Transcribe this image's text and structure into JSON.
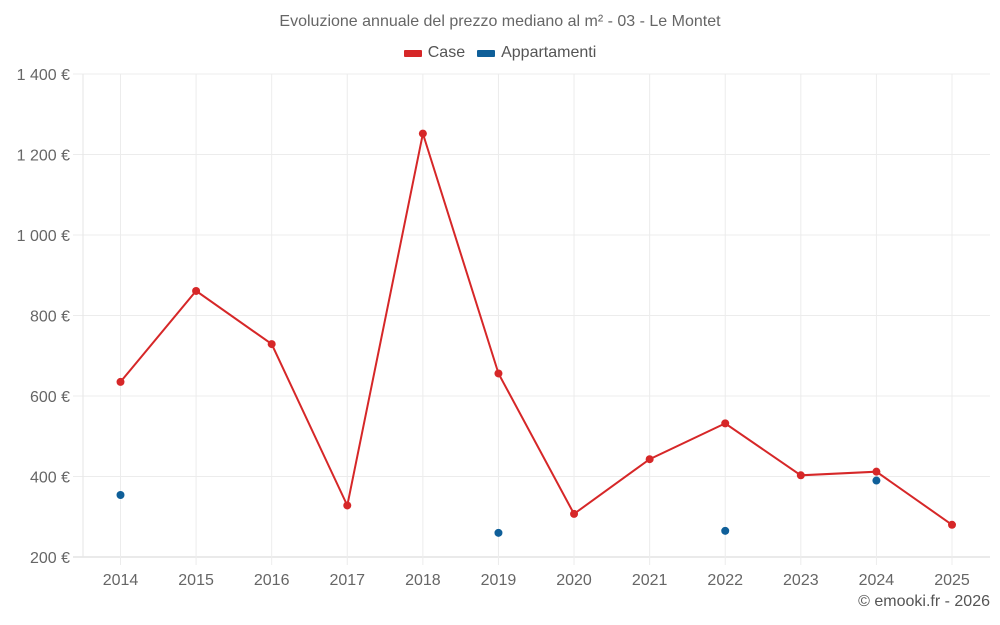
{
  "chart": {
    "title": "Evoluzione annuale del prezzo mediano al m² - 03 - Le Montet",
    "credit": "© emooki.fr - 2026",
    "legend": [
      {
        "label": "Case",
        "color": "#d62728"
      },
      {
        "label": "Appartamenti",
        "color": "#0f5f99"
      }
    ]
  },
  "chart_data": {
    "type": "line",
    "title": "Evoluzione annuale del prezzo mediano al m² - 03 - Le Montet",
    "xlabel": "",
    "ylabel": "",
    "x": [
      "2014",
      "2015",
      "2016",
      "2017",
      "2018",
      "2019",
      "2020",
      "2021",
      "2022",
      "2023",
      "2024",
      "2025"
    ],
    "y_ticks": [
      "200 €",
      "400 €",
      "600 €",
      "800 €",
      "1 000 €",
      "1 200 €",
      "1 400 €"
    ],
    "ylim": [
      200,
      1400
    ],
    "grid": true,
    "legend_position": "top",
    "series": [
      {
        "name": "Case",
        "color": "#d62728",
        "mode": "lines+markers",
        "values": [
          635,
          861,
          729,
          328,
          1252,
          656,
          307,
          443,
          532,
          403,
          412,
          280
        ]
      },
      {
        "name": "Appartamenti",
        "color": "#0f5f99",
        "mode": "markers",
        "values": [
          354,
          null,
          null,
          null,
          null,
          260,
          null,
          null,
          265,
          null,
          390,
          null
        ]
      }
    ]
  }
}
